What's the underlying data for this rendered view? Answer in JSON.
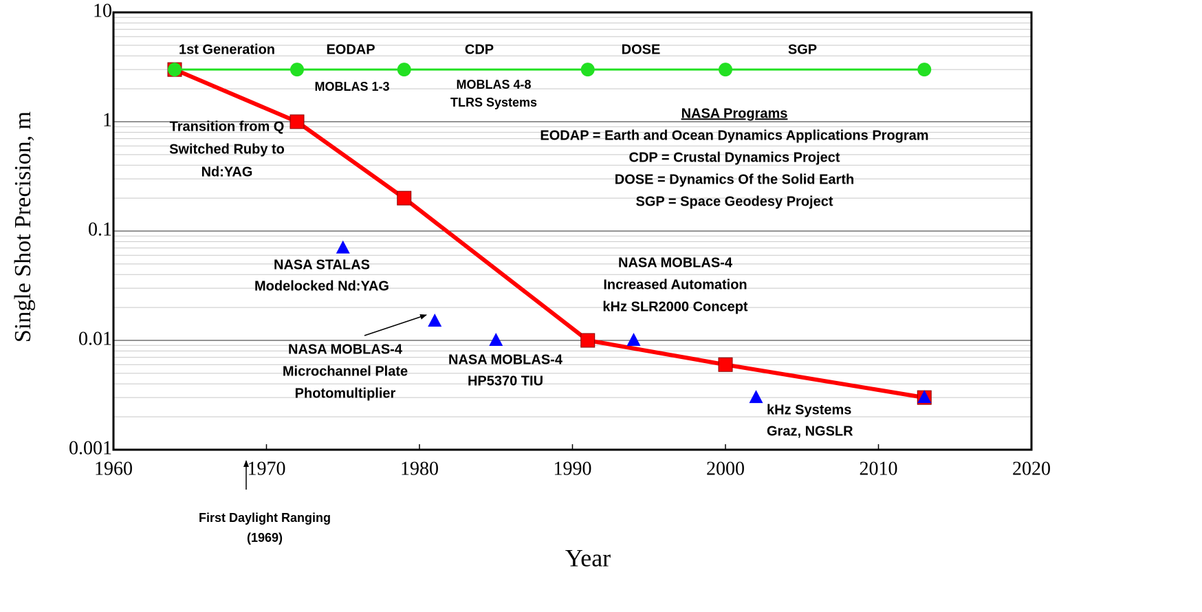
{
  "chart_data": {
    "type": "line",
    "xlabel": "Year",
    "ylabel": "Single Shot Precision, m",
    "xlim": [
      1960,
      2020
    ],
    "xticks": [
      1960,
      1970,
      1980,
      1990,
      2000,
      2010,
      2020
    ],
    "ylim": [
      0.001,
      10
    ],
    "yticks": [
      0.001,
      0.01,
      0.1,
      1,
      10
    ],
    "log_y": true,
    "grid": true,
    "minor_yticks": [
      0.002,
      0.003,
      0.004,
      0.005,
      0.006,
      0.007,
      0.008,
      0.009,
      0.02,
      0.03,
      0.04,
      0.05,
      0.06,
      0.07,
      0.08,
      0.09,
      0.2,
      0.3,
      0.4,
      0.5,
      0.6,
      0.7,
      0.8,
      0.9,
      2,
      3,
      4,
      5,
      6,
      7,
      8,
      9
    ],
    "series": [
      {
        "color": "#ff0000",
        "marker": "square",
        "line": true,
        "x": [
          1964,
          1972,
          1979,
          1991,
          2000,
          2013
        ],
        "values": [
          3,
          1,
          0.2,
          0.01,
          0.006,
          0.003
        ]
      },
      {
        "color": "#22e022",
        "marker": "circle",
        "line": true,
        "x": [
          1964,
          1972,
          1979,
          1991,
          2000,
          2013
        ],
        "values": [
          3,
          3,
          3,
          3,
          3,
          3
        ]
      },
      {
        "color": "#0000ff",
        "marker": "triangle",
        "line": false,
        "x": [
          1975,
          1981,
          1985,
          1994,
          2002,
          2013
        ],
        "values": [
          0.07,
          0.015,
          0.01,
          0.01,
          0.003,
          0.003
        ]
      }
    ],
    "phase_labels": [
      "1st Generation",
      "EODAP",
      "CDP",
      "DOSE",
      "SGP"
    ],
    "annotations": [
      {
        "lines": [
          "Transition from Q",
          "Switched Ruby to",
          "Nd:YAG"
        ]
      },
      {
        "lines": [
          "MOBLAS 1-3"
        ]
      },
      {
        "lines": [
          "MOBLAS 4-8",
          "TLRS Systems"
        ]
      },
      {
        "lines": [
          "NASA Programs",
          "EODAP = Earth and Ocean Dynamics Applications Program",
          "CDP = Crustal Dynamics Project",
          "DOSE = Dynamics Of the Solid Earth",
          "SGP = Space Geodesy Project"
        ]
      },
      {
        "lines": [
          "NASA STALAS",
          "Modelocked Nd:YAG"
        ]
      },
      {
        "lines": [
          "NASA MOBLAS-4",
          "Increased Automation",
          "kHz SLR2000 Concept"
        ]
      },
      {
        "lines": [
          "NASA MOBLAS-4",
          "Microchannel Plate",
          "Photomultiplier"
        ]
      },
      {
        "lines": [
          "NASA MOBLAS-4",
          "HP5370 TIU"
        ]
      },
      {
        "lines": [
          "kHz Systems",
          "Graz, NGSLR"
        ]
      },
      {
        "lines": [
          "First Daylight Ranging",
          "(1969)"
        ]
      }
    ]
  }
}
